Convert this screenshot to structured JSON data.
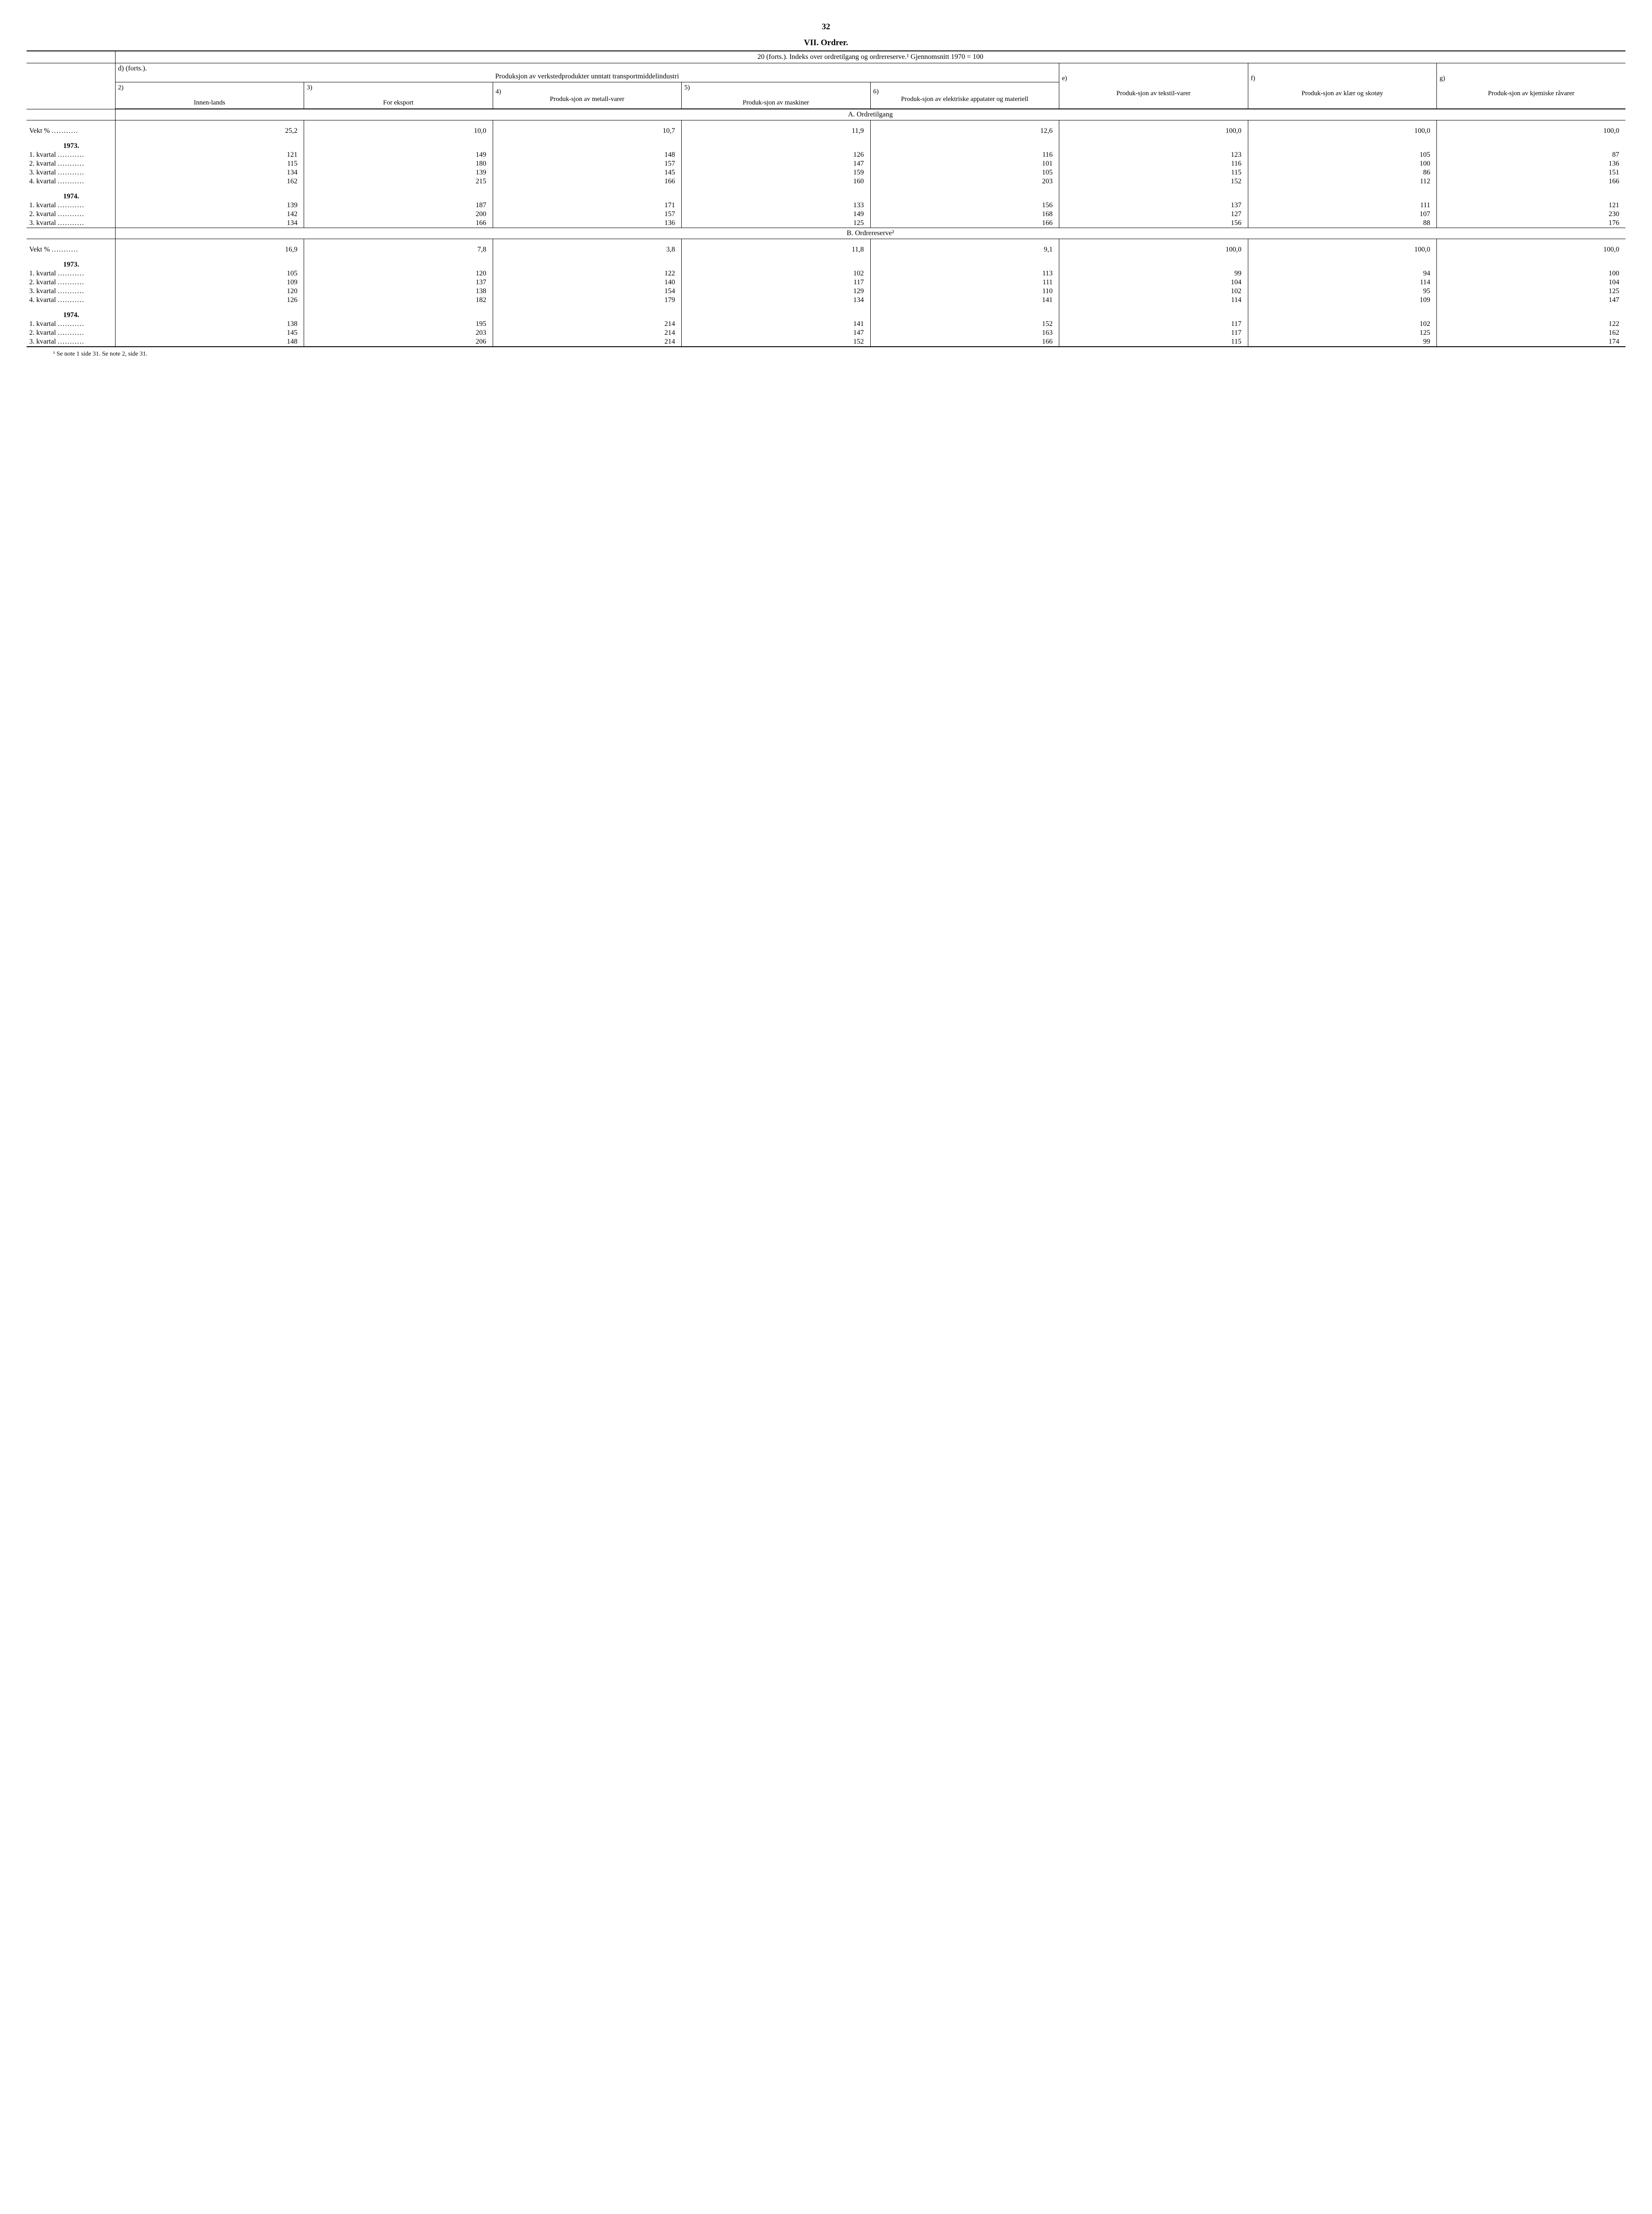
{
  "page_number": "32",
  "title": "VII. Ordrer.",
  "super_header": "20 (forts.). Indeks over ordretilgang og ordrereserve.¹ Gjennomsnitt 1970 = 100",
  "group_d_label": "d) (forts.).",
  "group_d_text": "Produksjon av verkstedprodukter unntatt transportmiddelindustri",
  "group_e_label": "e)",
  "group_f_label": "f)",
  "group_g_label": "g)",
  "col2_num": "2)",
  "col2_text": "Innen-lands",
  "col3_num": "3)",
  "col3_text": "For eksport",
  "col4_num": "4)",
  "col4_text": "Produk-sjon av metall-varer",
  "col5_num": "5)",
  "col5_text": "Produk-sjon av maskiner",
  "col6_num": "6)",
  "col6_text": "Produk-sjon av elektriske appatater og materiell",
  "col_e_text": "Produk-sjon av tekstil-varer",
  "col_f_text": "Produk-sjon av klær og skotøy",
  "col_g_text": "Produk-sjon av kjemiske råvarer",
  "section_a": "A. Ordretilgang",
  "section_b": "B. Ordrereserve²",
  "vekt_label": "Vekt %",
  "year_1973": "1973.",
  "year_1974": "1974.",
  "q1_label": "1. kvartal",
  "q2_label": "2. kvartal",
  "q3_label": "3. kvartal",
  "q4_label": "4. kvartal",
  "a_vekt": [
    "25,2",
    "10,0",
    "10,7",
    "11,9",
    "12,6",
    "100,0",
    "100,0",
    "100,0"
  ],
  "a_1973": [
    [
      "121",
      "149",
      "148",
      "126",
      "116",
      "123",
      "105",
      "87"
    ],
    [
      "115",
      "180",
      "157",
      "147",
      "101",
      "116",
      "100",
      "136"
    ],
    [
      "134",
      "139",
      "145",
      "159",
      "105",
      "115",
      "86",
      "151"
    ],
    [
      "162",
      "215",
      "166",
      "160",
      "203",
      "152",
      "112",
      "166"
    ]
  ],
  "a_1974": [
    [
      "139",
      "187",
      "171",
      "133",
      "156",
      "137",
      "111",
      "121"
    ],
    [
      "142",
      "200",
      "157",
      "149",
      "168",
      "127",
      "107",
      "230"
    ],
    [
      "134",
      "166",
      "136",
      "125",
      "166",
      "156",
      "88",
      "176"
    ]
  ],
  "b_vekt": [
    "16,9",
    "7,8",
    "3,8",
    "11,8",
    "9,1",
    "100,0",
    "100,0",
    "100,0"
  ],
  "b_1973": [
    [
      "105",
      "120",
      "122",
      "102",
      "113",
      "99",
      "94",
      "100"
    ],
    [
      "109",
      "137",
      "140",
      "117",
      "111",
      "104",
      "114",
      "104"
    ],
    [
      "120",
      "138",
      "154",
      "129",
      "110",
      "102",
      "95",
      "125"
    ],
    [
      "126",
      "182",
      "179",
      "134",
      "141",
      "114",
      "109",
      "147"
    ]
  ],
  "b_1974": [
    [
      "138",
      "195",
      "214",
      "141",
      "152",
      "117",
      "102",
      "122"
    ],
    [
      "145",
      "203",
      "214",
      "147",
      "163",
      "117",
      "125",
      "162"
    ],
    [
      "148",
      "206",
      "214",
      "152",
      "166",
      "115",
      "99",
      "174"
    ]
  ],
  "footnote": "¹ Se note 1 side 31. Se note 2, side 31."
}
